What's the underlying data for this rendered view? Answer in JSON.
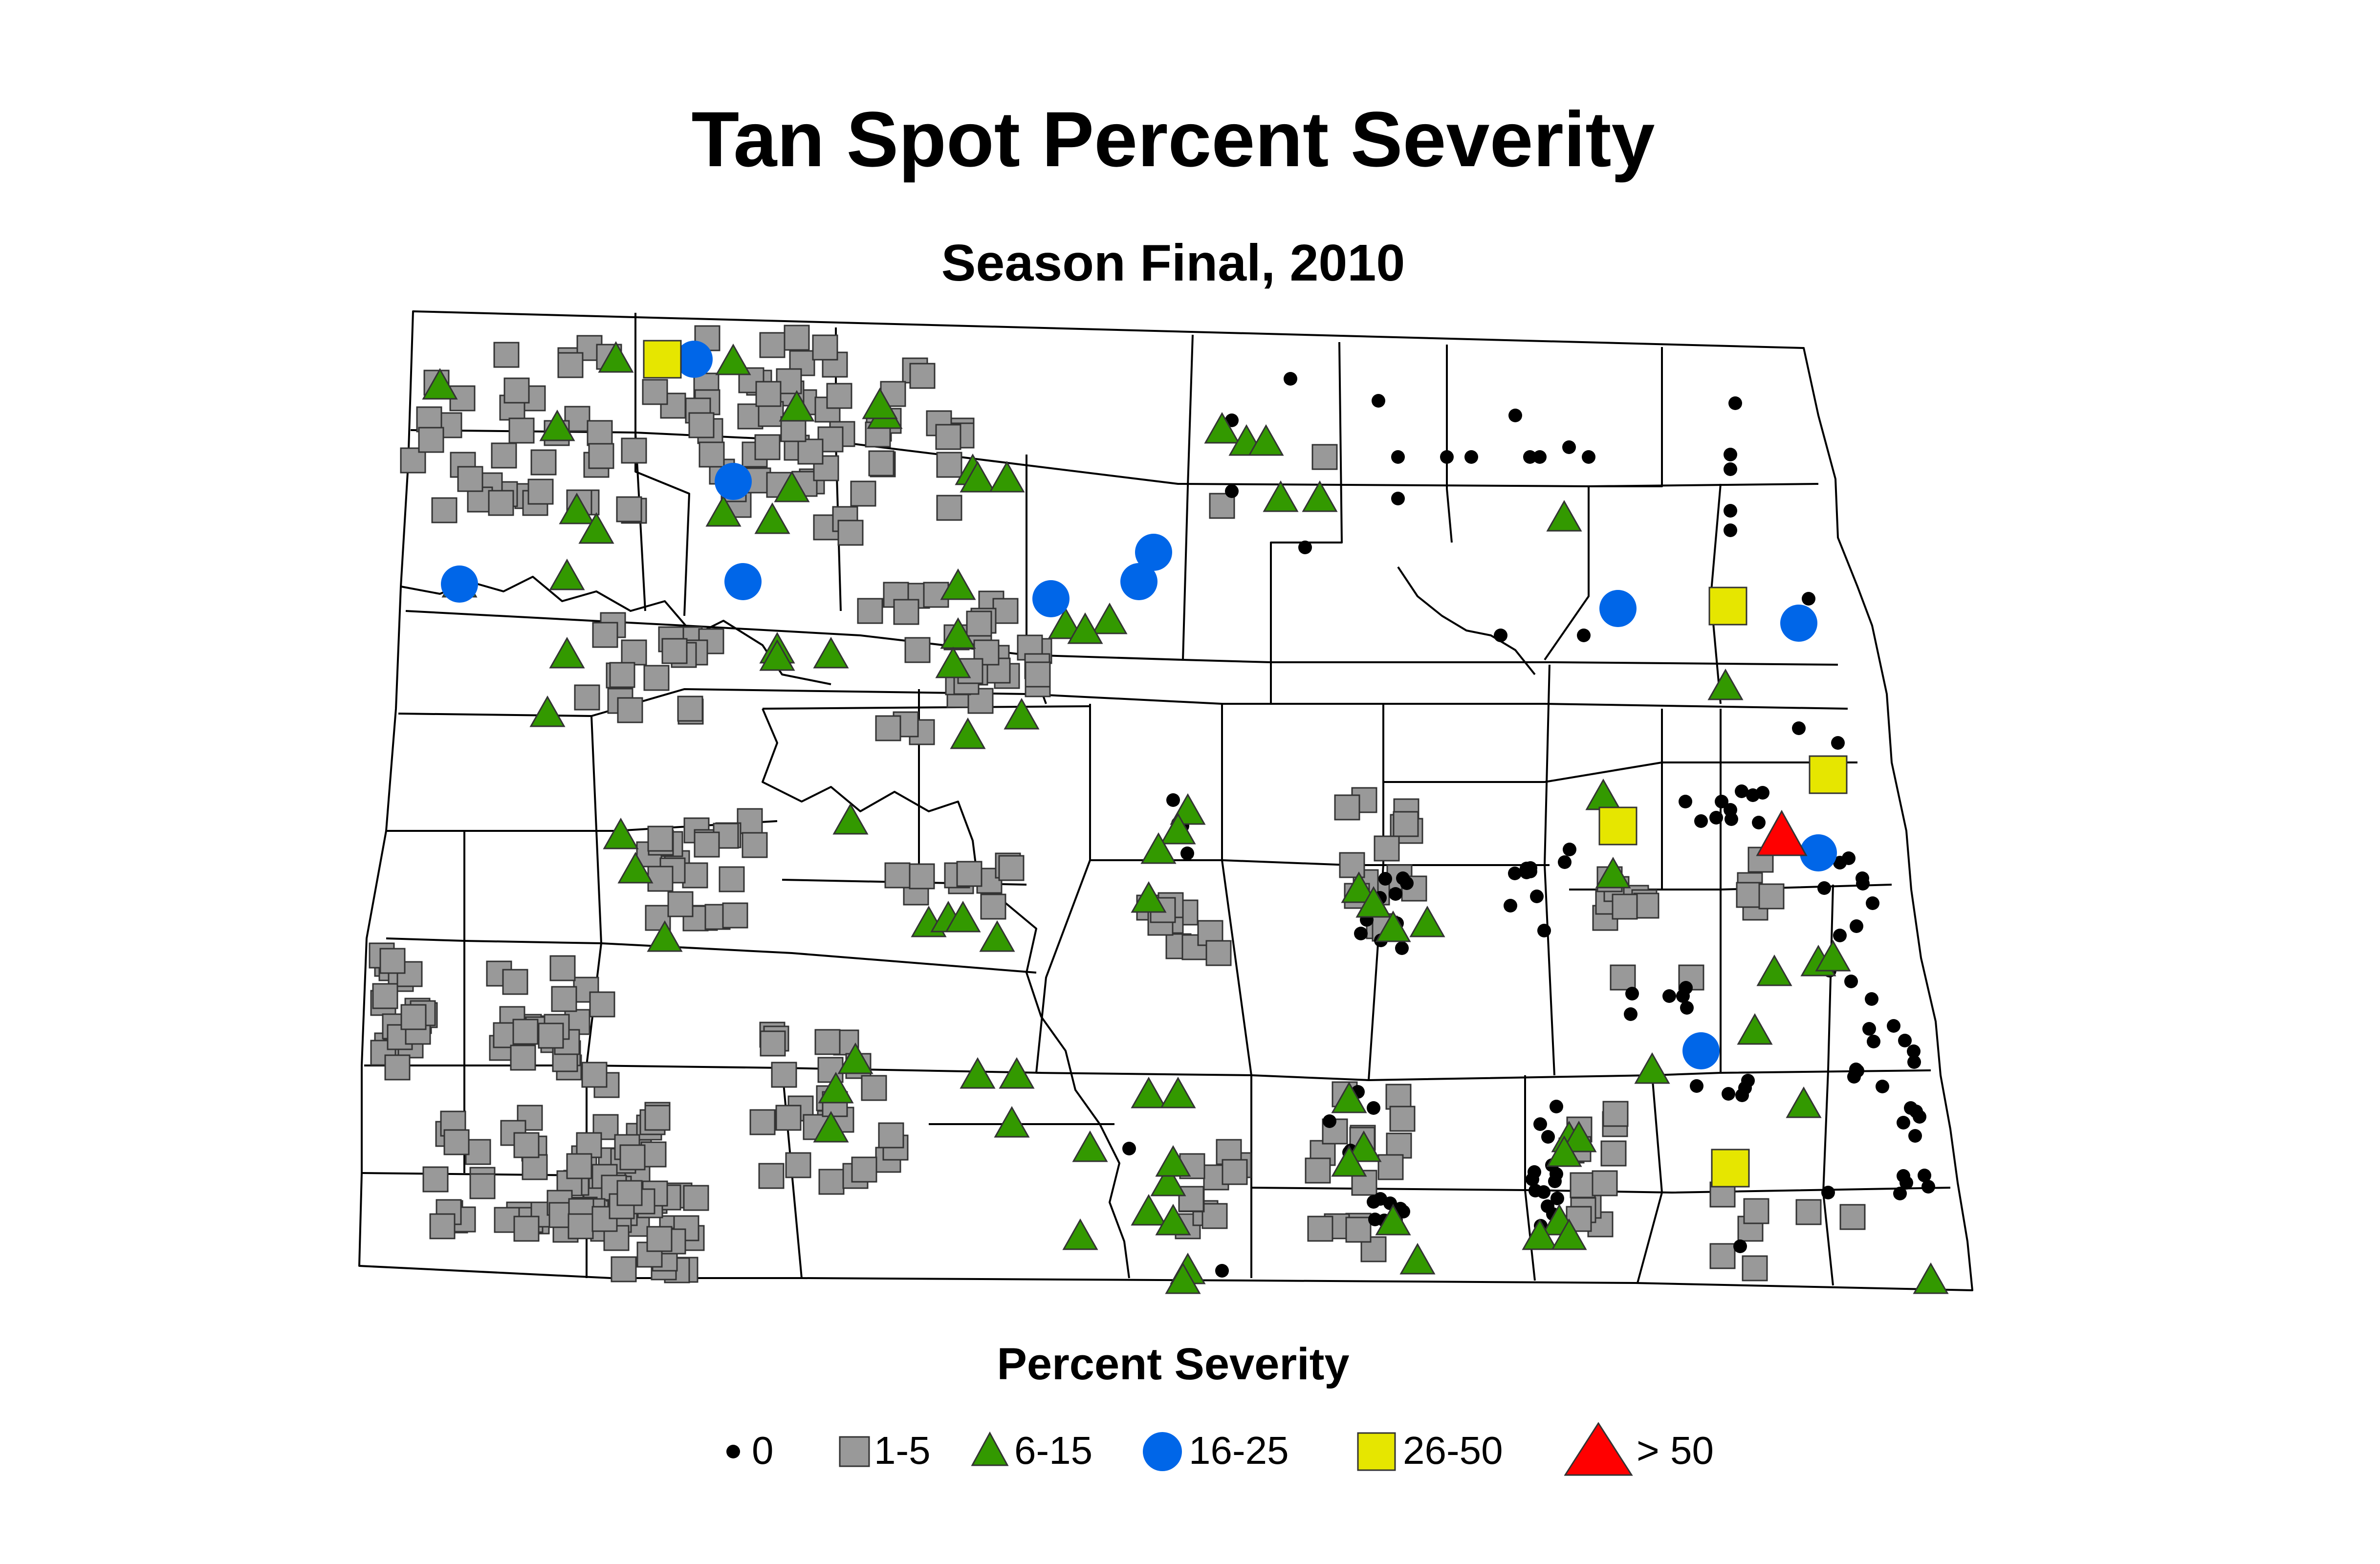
{
  "title": "Tan Spot Percent Severity",
  "subtitle": "Season Final, 2010",
  "legend": {
    "title": "Percent Severity",
    "items": [
      {
        "label": "0",
        "symbol": "dot",
        "color": "#000000"
      },
      {
        "label": "1-5",
        "symbol": "square",
        "color": "#999999"
      },
      {
        "label": "6-15",
        "symbol": "triangle",
        "color": "#339900"
      },
      {
        "label": "16-25",
        "symbol": "circle",
        "color": "#0066e8"
      },
      {
        "label": "26-50",
        "symbol": "square",
        "color": "#e6e600"
      },
      {
        "label": "> 50",
        "symbol": "triangle",
        "color": "#ff0000"
      }
    ]
  },
  "colors": {
    "background": "#ffffff",
    "county_border": "#000000",
    "sev_0": "#000000",
    "sev_1_5": "#999999",
    "sev_6_15": "#339900",
    "sev_16_25": "#0066e8",
    "sev_26_50": "#e6e600",
    "sev_gt_50": "#ff0000"
  }
}
